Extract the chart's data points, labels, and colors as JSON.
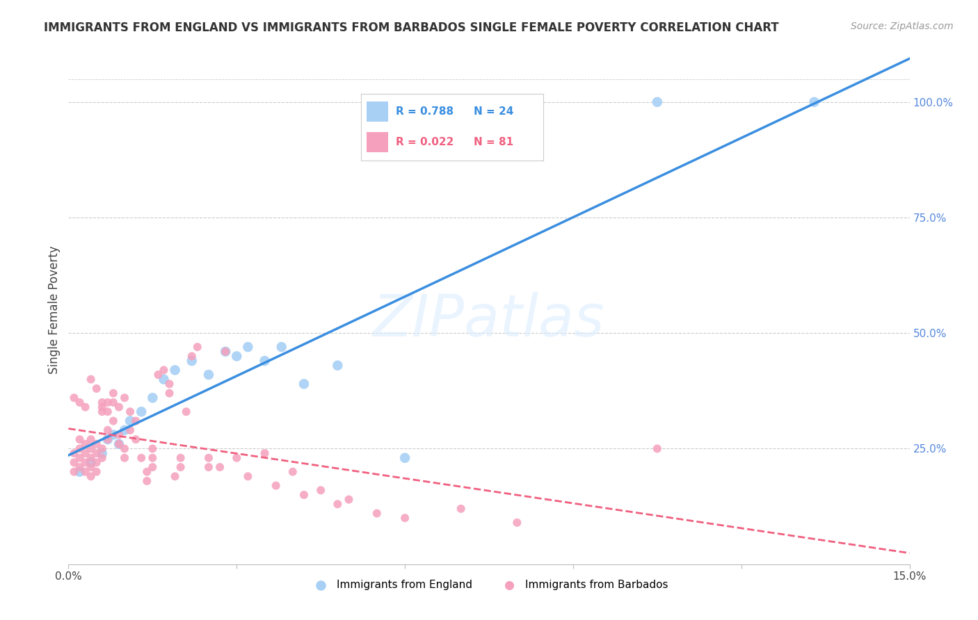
{
  "title": "IMMIGRANTS FROM ENGLAND VS IMMIGRANTS FROM BARBADOS SINGLE FEMALE POVERTY CORRELATION CHART",
  "source": "Source: ZipAtlas.com",
  "ylabel": "Single Female Poverty",
  "xlim": [
    0.0,
    0.15
  ],
  "ylim": [
    0.0,
    1.1
  ],
  "xtick_positions": [
    0.0,
    0.03,
    0.06,
    0.09,
    0.12,
    0.15
  ],
  "xticklabels": [
    "0.0%",
    "",
    "",
    "",
    "",
    "15.0%"
  ],
  "yticks_right": [
    0.0,
    0.25,
    0.5,
    0.75,
    1.0
  ],
  "yticklabels_right": [
    "",
    "25.0%",
    "50.0%",
    "75.0%",
    "100.0%"
  ],
  "england_color": "#a8d0f5",
  "barbados_color": "#f5a0bc",
  "england_line_color": "#3a8ee0",
  "barbados_line_color": "#f06080",
  "england_R": 0.788,
  "england_N": 24,
  "barbados_R": 0.022,
  "barbados_N": 81,
  "watermark": "ZIPatlas",
  "background_color": "#ffffff",
  "grid_color": "#cccccc",
  "title_color": "#333333",
  "right_axis_color": "#5588dd",
  "england_x": [
    0.002,
    0.004,
    0.006,
    0.007,
    0.008,
    0.009,
    0.01,
    0.011,
    0.013,
    0.015,
    0.017,
    0.019,
    0.022,
    0.025,
    0.028,
    0.03,
    0.032,
    0.035,
    0.038,
    0.042,
    0.048,
    0.06,
    0.105,
    0.133
  ],
  "england_y": [
    0.2,
    0.22,
    0.24,
    0.27,
    0.28,
    0.26,
    0.29,
    0.31,
    0.33,
    0.36,
    0.4,
    0.42,
    0.44,
    0.41,
    0.46,
    0.45,
    0.47,
    0.44,
    0.47,
    0.39,
    0.43,
    0.23,
    1.0,
    1.0
  ],
  "barbados_x": [
    0.001,
    0.001,
    0.001,
    0.002,
    0.002,
    0.002,
    0.002,
    0.003,
    0.003,
    0.003,
    0.003,
    0.004,
    0.004,
    0.004,
    0.004,
    0.004,
    0.005,
    0.005,
    0.005,
    0.005,
    0.006,
    0.006,
    0.006,
    0.006,
    0.007,
    0.007,
    0.007,
    0.007,
    0.008,
    0.008,
    0.008,
    0.009,
    0.009,
    0.009,
    0.01,
    0.01,
    0.01,
    0.011,
    0.011,
    0.012,
    0.012,
    0.013,
    0.014,
    0.014,
    0.015,
    0.015,
    0.015,
    0.016,
    0.017,
    0.018,
    0.018,
    0.019,
    0.02,
    0.02,
    0.021,
    0.022,
    0.023,
    0.025,
    0.025,
    0.027,
    0.028,
    0.03,
    0.032,
    0.035,
    0.037,
    0.04,
    0.042,
    0.045,
    0.048,
    0.05,
    0.055,
    0.06,
    0.07,
    0.08,
    0.105,
    0.001,
    0.002,
    0.003,
    0.004,
    0.005,
    0.006
  ],
  "barbados_y": [
    0.24,
    0.22,
    0.2,
    0.21,
    0.23,
    0.25,
    0.27,
    0.2,
    0.22,
    0.24,
    0.26,
    0.21,
    0.23,
    0.25,
    0.19,
    0.27,
    0.22,
    0.24,
    0.26,
    0.2,
    0.33,
    0.35,
    0.23,
    0.25,
    0.33,
    0.35,
    0.29,
    0.27,
    0.35,
    0.37,
    0.31,
    0.34,
    0.26,
    0.28,
    0.36,
    0.23,
    0.25,
    0.33,
    0.29,
    0.31,
    0.27,
    0.23,
    0.2,
    0.18,
    0.21,
    0.23,
    0.25,
    0.41,
    0.42,
    0.37,
    0.39,
    0.19,
    0.21,
    0.23,
    0.33,
    0.45,
    0.47,
    0.23,
    0.21,
    0.21,
    0.46,
    0.23,
    0.19,
    0.24,
    0.17,
    0.2,
    0.15,
    0.16,
    0.13,
    0.14,
    0.11,
    0.1,
    0.12,
    0.09,
    0.25,
    0.36,
    0.35,
    0.34,
    0.4,
    0.38,
    0.34
  ]
}
